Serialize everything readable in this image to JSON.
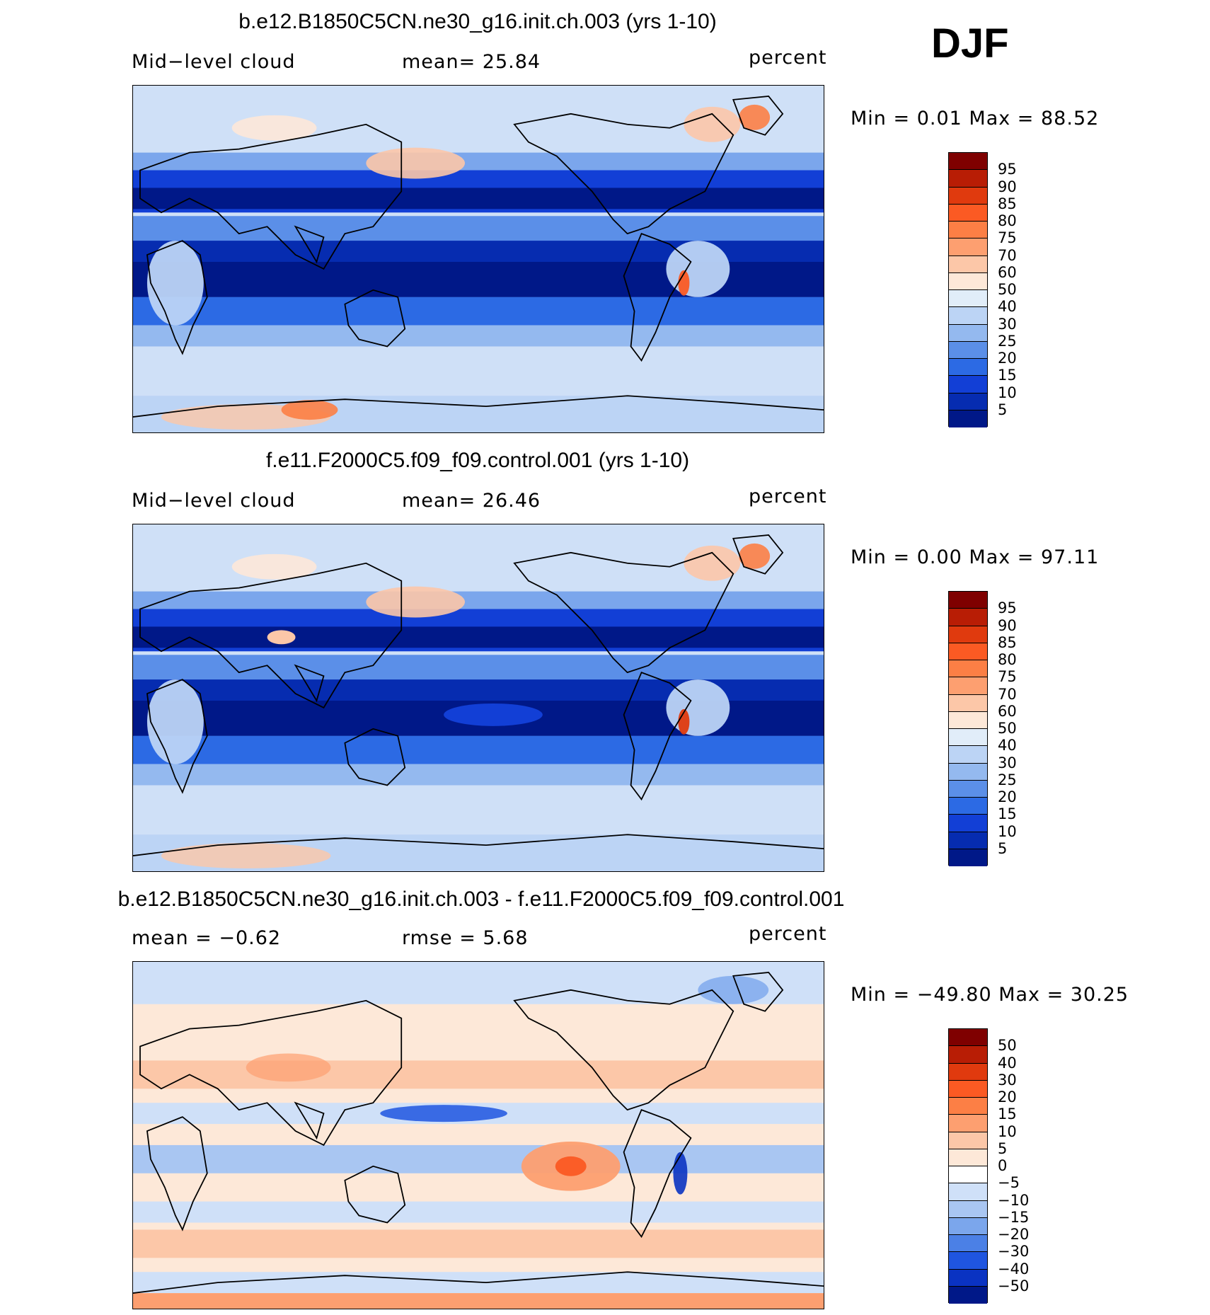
{
  "season_label": "DJF",
  "panels": [
    {
      "title": "b.e12.B1850C5CN.ne30_g16.init.ch.003 (yrs 1-10)",
      "left_label": "Mid−level cloud",
      "mid_label": "mean=   25.84",
      "right_label": "percent",
      "minmax": "Min  =     0.01  Max  =    88.52",
      "colorbar": {
        "labels": [
          "95",
          "90",
          "85",
          "80",
          "75",
          "70",
          "60",
          "50",
          "40",
          "30",
          "25",
          "20",
          "15",
          "10",
          "5"
        ],
        "colors": [
          "#7f0000",
          "#b81d05",
          "#e03a0e",
          "#fb5a23",
          "#fc7f45",
          "#fd9f70",
          "#fcc7a8",
          "#fde8d8",
          "#e1edf9",
          "#bcd4f5",
          "#94b9ef",
          "#5b8fe8",
          "#2c6ae4",
          "#123fd6",
          "#062cb0",
          "#001888"
        ]
      },
      "map_field": "cloud"
    },
    {
      "title": "f.e11.F2000C5.f09_f09.control.001 (yrs 1-10)",
      "left_label": "Mid−level cloud",
      "mid_label": "mean=   26.46",
      "right_label": "percent",
      "minmax": "Min  =     0.00  Max  =    97.11",
      "colorbar": {
        "labels": [
          "95",
          "90",
          "85",
          "80",
          "75",
          "70",
          "60",
          "50",
          "40",
          "30",
          "25",
          "20",
          "15",
          "10",
          "5"
        ],
        "colors": [
          "#7f0000",
          "#b81d05",
          "#e03a0e",
          "#fb5a23",
          "#fc7f45",
          "#fd9f70",
          "#fcc7a8",
          "#fde8d8",
          "#e1edf9",
          "#bcd4f5",
          "#94b9ef",
          "#5b8fe8",
          "#2c6ae4",
          "#123fd6",
          "#062cb0",
          "#001888"
        ]
      },
      "map_field": "cloud"
    },
    {
      "title": "b.e12.B1850C5CN.ne30_g16.init.ch.003 - f.e11.F2000C5.f09_f09.control.001",
      "left_label": "mean  =    −0.62",
      "mid_label": "rmse  =      5.68",
      "right_label": "percent",
      "minmax": "Min  = −49.80  Max  =    30.25",
      "colorbar": {
        "labels": [
          "50",
          "40",
          "30",
          "20",
          "15",
          "10",
          "5",
          "0",
          "−5",
          "−10",
          "−15",
          "−20",
          "−30",
          "−40",
          "−50"
        ],
        "colors": [
          "#7f0000",
          "#b81d05",
          "#e03a0e",
          "#fb5a23",
          "#fc7f45",
          "#fd9f70",
          "#fcc7a8",
          "#fde8d8",
          "#ffffff",
          "#cfe0f8",
          "#a9c6f2",
          "#7ba6ec",
          "#4b80e6",
          "#1f55e0",
          "#0a33c2",
          "#001888"
        ]
      },
      "map_field": "diff"
    }
  ]
}
